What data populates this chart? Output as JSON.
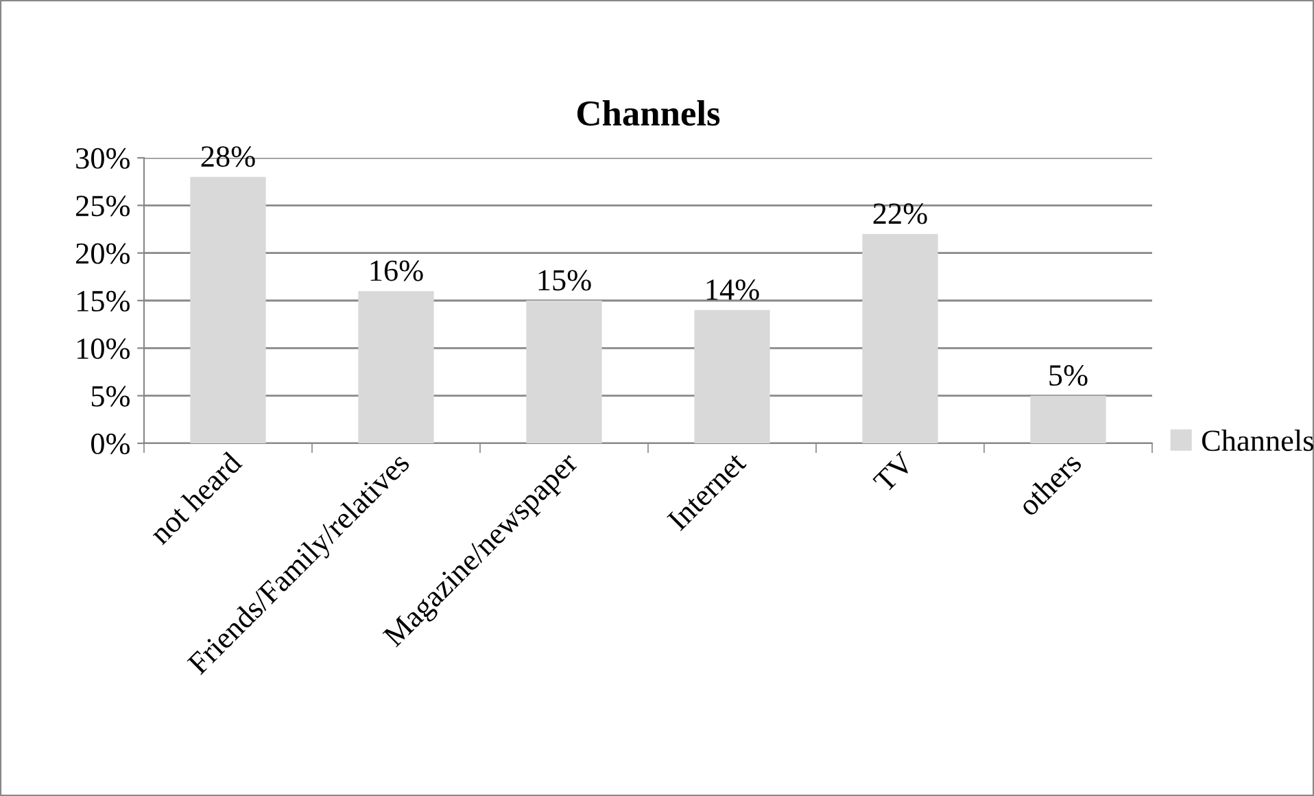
{
  "chart_data": {
    "type": "bar",
    "title": "Channels",
    "categories": [
      "not heard",
      "Friends/Family/relatives",
      "Magazine/newspaper",
      "Internet",
      "TV",
      "others"
    ],
    "series": [
      {
        "name": "Channels",
        "color": "#d9d9d9",
        "values": [
          28,
          16,
          15,
          14,
          22,
          5
        ],
        "value_labels": [
          "28%",
          "16%",
          "15%",
          "14%",
          "22%",
          "5%"
        ]
      }
    ],
    "ylim": [
      0,
      30
    ],
    "yticks": [
      {
        "value": 0,
        "label": "0%"
      },
      {
        "value": 5,
        "label": "5%"
      },
      {
        "value": 10,
        "label": "10%"
      },
      {
        "value": 15,
        "label": "15%"
      },
      {
        "value": 20,
        "label": "20%"
      },
      {
        "value": 25,
        "label": "25%"
      },
      {
        "value": 30,
        "label": "30%"
      }
    ],
    "grid": "y",
    "legend": "right"
  }
}
